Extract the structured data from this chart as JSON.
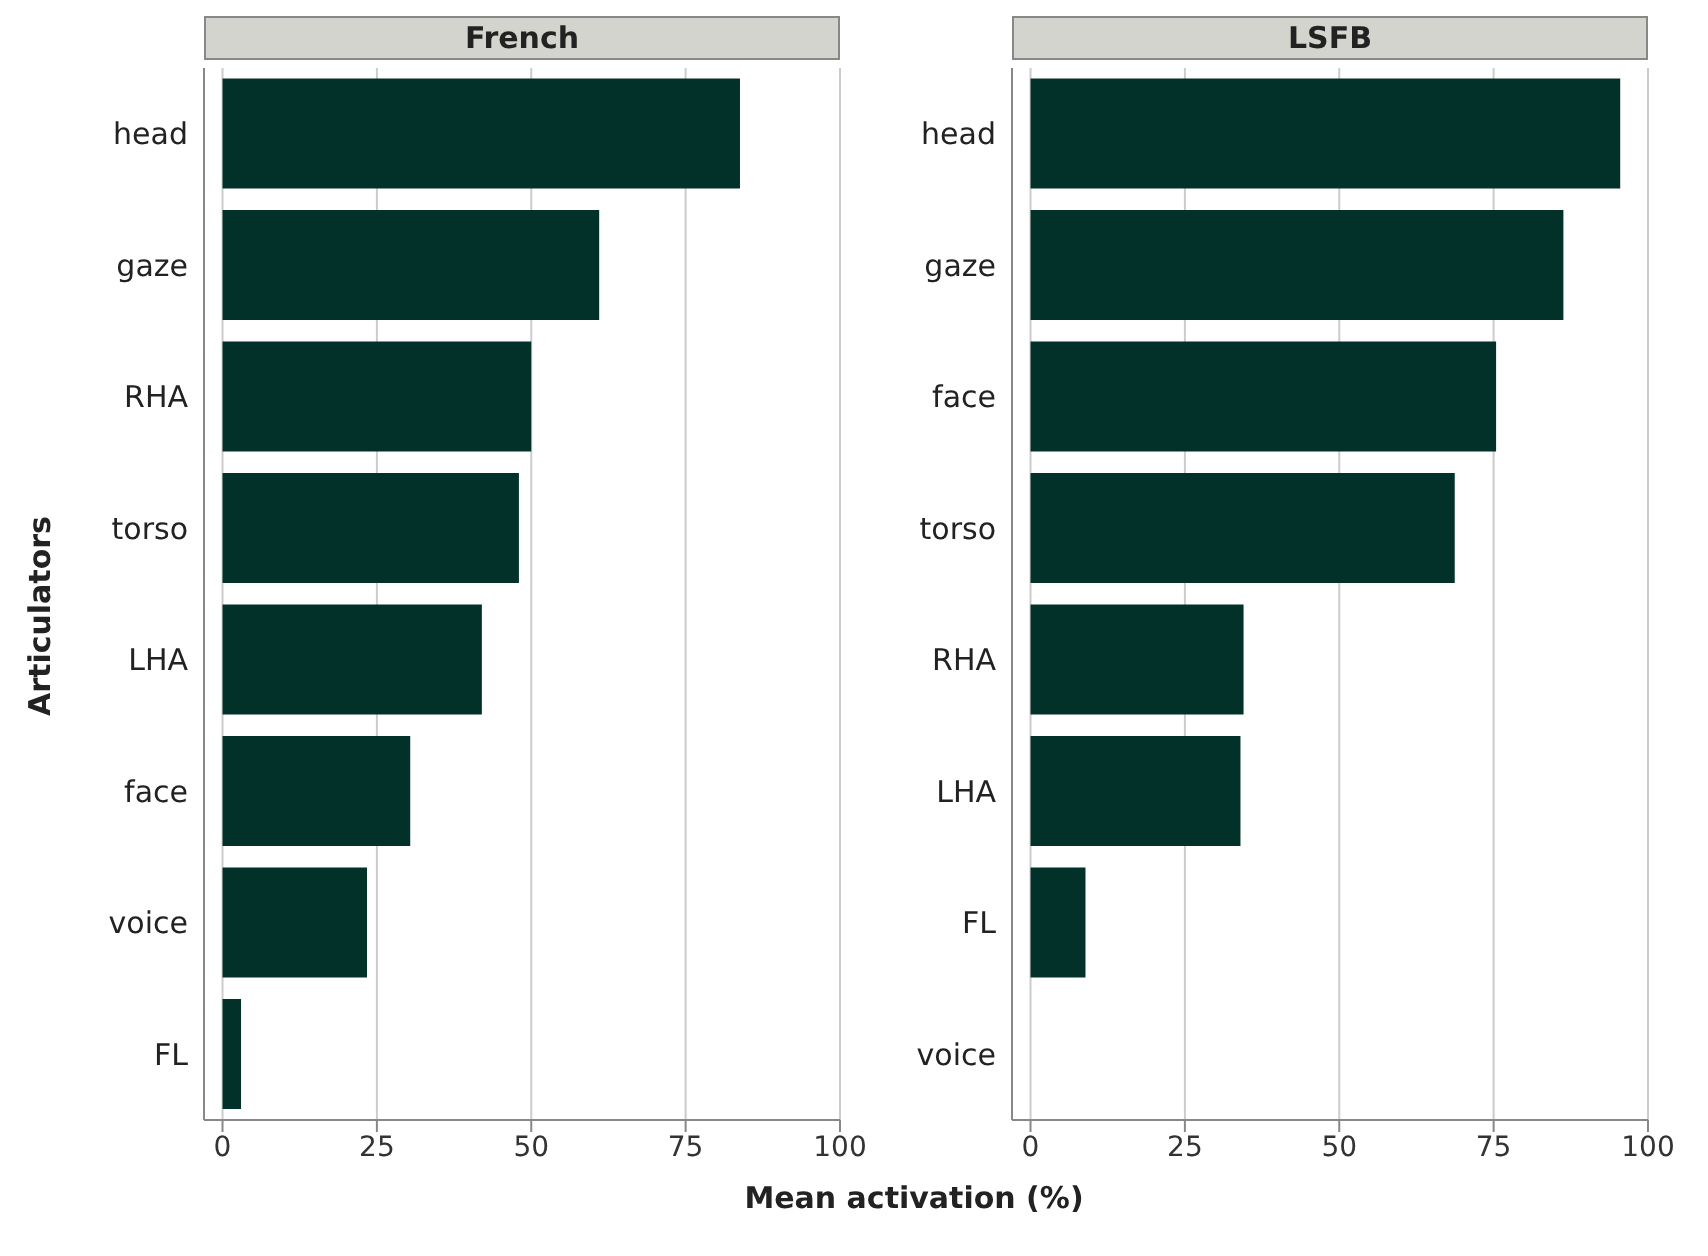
{
  "chart_data": [
    {
      "type": "bar",
      "orientation": "horizontal",
      "title": "French",
      "ylabel": "Articulators",
      "xlabel": "Mean activation (%)",
      "categories": [
        "head",
        "gaze",
        "RHA",
        "torso",
        "LHA",
        "face",
        "voice",
        "FL"
      ],
      "values": [
        83.8,
        61,
        50,
        48,
        42,
        30.4,
        23.4,
        3
      ],
      "color": "#02312a",
      "xlim": [
        -3,
        100
      ],
      "xticks": [
        0,
        25,
        50,
        75,
        100
      ],
      "grid": "x"
    },
    {
      "type": "bar",
      "orientation": "horizontal",
      "title": "LSFB",
      "categories": [
        "head",
        "gaze",
        "face",
        "torso",
        "RHA",
        "LHA",
        "FL",
        "voice"
      ],
      "values": [
        95.5,
        86.3,
        75.4,
        68.7,
        34.5,
        34,
        8.9,
        0
      ],
      "color": "#02312a",
      "xlim": [
        -3,
        100
      ],
      "xticks": [
        0,
        25,
        50,
        75,
        100
      ],
      "grid": "x"
    }
  ]
}
